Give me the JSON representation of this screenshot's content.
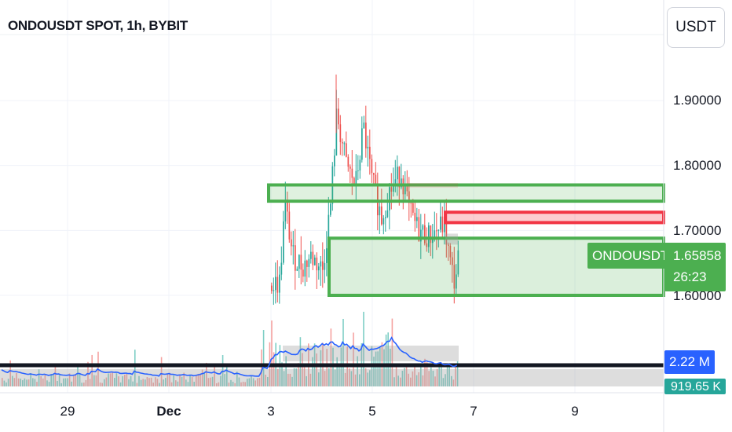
{
  "header": {
    "title": "ONDOUSDT SPOT, 1h, BYBIT",
    "currency_button": "USDT"
  },
  "price_axis": {
    "ticks": [
      "1.90000",
      "1.80000",
      "1.70000",
      "1.60000"
    ]
  },
  "time_axis": {
    "ticks": [
      {
        "label": "29",
        "bold": false
      },
      {
        "label": "Dec",
        "bold": true
      },
      {
        "label": "3",
        "bold": false
      },
      {
        "label": "5",
        "bold": false
      },
      {
        "label": "7",
        "bold": false
      },
      {
        "label": "9",
        "bold": false
      }
    ]
  },
  "current": {
    "symbol_label": "ONDOUSDT",
    "price": "1.65858",
    "countdown": "26:23",
    "volume_label": "2.22 M",
    "volume_ma_label": "919.65 K"
  },
  "colors": {
    "up": "#26a69a",
    "down": "#ef5350",
    "zone_green": "#4caf50",
    "zone_red": "#f23645",
    "volume_ma": "#2962ff"
  },
  "chart_data": {
    "type": "candlestick",
    "symbol": "ONDOUSDT",
    "interval": "1h",
    "exchange": "BYBIT",
    "ylim": [
      1.57,
      1.96
    ],
    "price_ticks": [
      1.9,
      1.8,
      1.7,
      1.6
    ],
    "x_ticks": [
      "29",
      "Dec",
      "3",
      "5",
      "7",
      "9"
    ],
    "last_price": 1.65858,
    "volume_now": "2.22 M",
    "volume_ma_now": "919.65 K",
    "zones": [
      {
        "kind": "supply",
        "color": "green",
        "price_low": 1.745,
        "price_high": 1.77
      },
      {
        "kind": "resistance",
        "color": "red",
        "price_low": 1.712,
        "price_high": 1.728
      },
      {
        "kind": "demand",
        "color": "green",
        "price_low": 1.6,
        "price_high": 1.688
      }
    ]
  }
}
